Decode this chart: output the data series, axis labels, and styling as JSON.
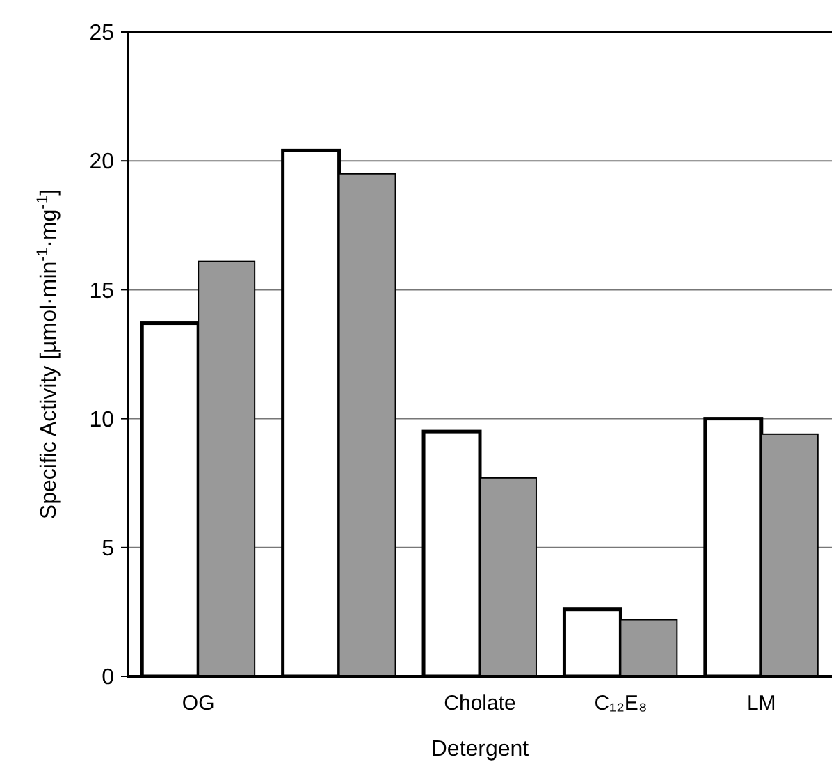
{
  "chart_data": {
    "type": "bar",
    "xlabel": "Detergent",
    "ylabel": "Specific Activity [µmol·min$^{-1}$·mg$^{-1}$]",
    "categories": [
      "OG",
      null,
      "Cholate",
      "C₁₂E₈",
      "LM"
    ],
    "series": [
      {
        "color": "#ffffff",
        "values": [
          13.7,
          20.4,
          9.5,
          2.6,
          10.0
        ]
      },
      {
        "color": "#999999",
        "values": [
          16.1,
          19.5,
          7.7,
          2.2,
          9.4
        ]
      }
    ],
    "ylim": [
      0,
      25
    ],
    "yticks": [
      0,
      5,
      10,
      15,
      20,
      25
    ],
    "grid": "y"
  }
}
